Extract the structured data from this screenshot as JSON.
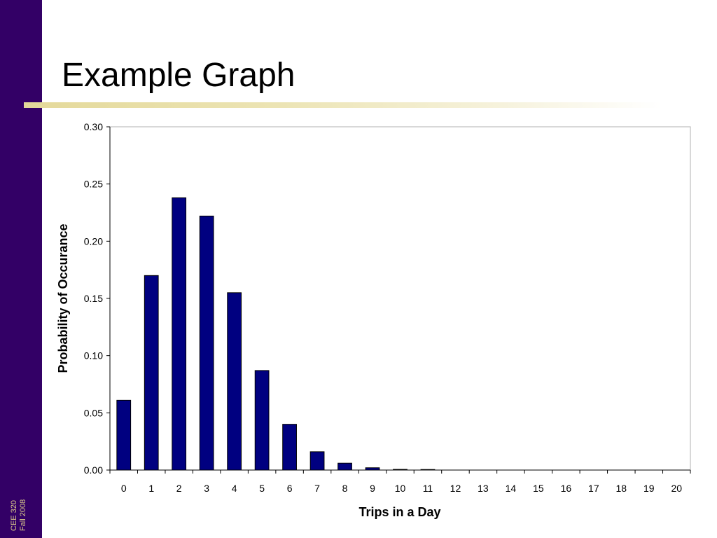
{
  "slide": {
    "title": "Example Graph",
    "footer_line1": "CEE 320",
    "footer_line2": "Fall 2008"
  },
  "colors": {
    "sidebar": "#330066",
    "bar_fill": "#000080",
    "footer_text": "#d9c98a"
  },
  "chart_data": {
    "type": "bar",
    "title": "",
    "xlabel": "Trips in a Day",
    "ylabel": "Probability of Occurance",
    "categories": [
      "0",
      "1",
      "2",
      "3",
      "4",
      "5",
      "6",
      "7",
      "8",
      "9",
      "10",
      "11",
      "12",
      "13",
      "14",
      "15",
      "16",
      "17",
      "18",
      "19",
      "20"
    ],
    "values": [
      0.061,
      0.17,
      0.238,
      0.222,
      0.155,
      0.087,
      0.04,
      0.016,
      0.006,
      0.002,
      0.0006,
      0.0002,
      0,
      0,
      0,
      0,
      0,
      0,
      0,
      0,
      0
    ],
    "ylim": [
      0,
      0.3
    ],
    "yticks": [
      "0.00",
      "0.05",
      "0.10",
      "0.15",
      "0.20",
      "0.25",
      "0.30"
    ],
    "grid": false,
    "legend": "none"
  }
}
